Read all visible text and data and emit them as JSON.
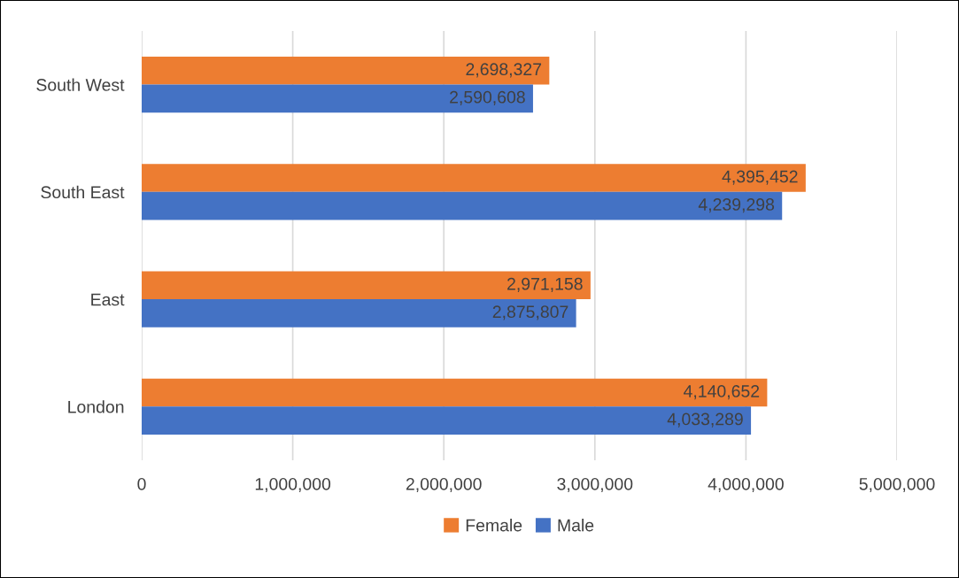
{
  "chart_data": {
    "type": "bar",
    "orientation": "horizontal",
    "categories": [
      "South West",
      "South East",
      "East",
      "London"
    ],
    "series": [
      {
        "name": "Female",
        "color": "#ed7d31",
        "values": [
          2698327,
          4395452,
          2971158,
          4140652
        ],
        "value_labels": [
          "2,698,327",
          "4,395,452",
          "2,971,158",
          "4,140,652"
        ]
      },
      {
        "name": "Male",
        "color": "#4472c4",
        "values": [
          2590608,
          4239298,
          2875807,
          4033289
        ],
        "value_labels": [
          "2,590,608",
          "4,239,298",
          "2,875,807",
          "4,033,289"
        ]
      }
    ],
    "xlim": [
      0,
      5000000
    ],
    "xticks": [
      0,
      {
        "value": 1000000,
        "label": "1,000,000"
      },
      {
        "value": 2000000,
        "label": "2,000,000"
      },
      {
        "value": 3000000,
        "label": "3,000,000"
      },
      {
        "value": 4000000,
        "label": "4,000,000"
      },
      {
        "value": 5000000,
        "label": "5,000,000"
      }
    ],
    "grid": "x",
    "legend": "bottom"
  }
}
